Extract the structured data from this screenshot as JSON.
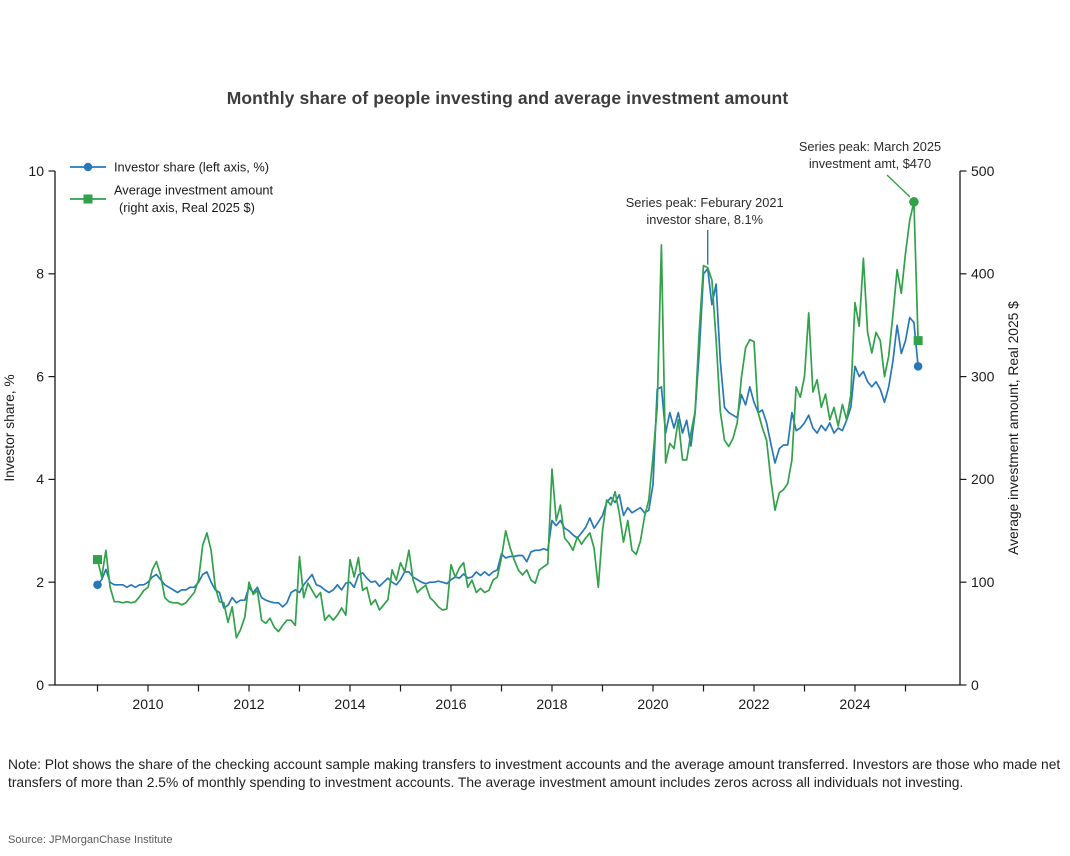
{
  "title": "Monthly share of people investing and average investment amount",
  "note": "Note: Plot shows the share of the checking account sample making transfers to investment accounts and the average amount transferred. Investors are those who made net transfers of more than 2.5% of monthly spending to investment accounts. The average investment amount includes zeros across all individuals not investing.",
  "source": "Source: JPMorganChase Institute",
  "chart_data": {
    "type": "line",
    "x_start": "2009-01",
    "x_end": "2025-04",
    "x_unit": "month",
    "x_tick_years": [
      2009,
      2010,
      2011,
      2012,
      2013,
      2014,
      2015,
      2016,
      2017,
      2018,
      2019,
      2020,
      2021,
      2022,
      2023,
      2024,
      2025
    ],
    "x_label_years": [
      2010,
      2012,
      2014,
      2016,
      2018,
      2020,
      2022,
      2024
    ],
    "left_axis": {
      "label": "Investor share, %",
      "range": [
        0,
        10
      ],
      "ticks": [
        0,
        2,
        4,
        6,
        8,
        10
      ]
    },
    "right_axis": {
      "label": "Average investment amount, Real 2025 $",
      "range": [
        0,
        500
      ],
      "ticks": [
        0,
        100,
        200,
        300,
        400,
        500
      ]
    },
    "legend": {
      "position": "top-left",
      "entries": [
        {
          "label": "Investor share (left axis, %)",
          "color": "#2878B9",
          "marker": "circle"
        },
        {
          "label_line1": "Average investment amount",
          "label_line2": "(right axis, Real 2025 $)",
          "color": "#31A14A",
          "marker": "square"
        }
      ]
    },
    "series": [
      {
        "name": "Investor share",
        "axis": "left",
        "unit": "%",
        "color": "#2878B9",
        "marker": "circle",
        "values": [
          1.95,
          2.05,
          2.25,
          2.0,
          1.95,
          1.95,
          1.95,
          1.9,
          1.95,
          1.9,
          1.95,
          1.95,
          2.0,
          2.1,
          2.15,
          2.05,
          1.95,
          1.9,
          1.85,
          1.8,
          1.85,
          1.85,
          1.9,
          1.9,
          2.0,
          2.15,
          2.2,
          2.0,
          1.85,
          1.8,
          1.5,
          1.55,
          1.7,
          1.6,
          1.65,
          1.65,
          1.9,
          1.8,
          1.9,
          1.7,
          1.65,
          1.62,
          1.6,
          1.6,
          1.52,
          1.6,
          1.8,
          1.85,
          1.8,
          1.95,
          2.05,
          2.15,
          1.95,
          1.92,
          1.85,
          1.8,
          1.85,
          1.95,
          1.85,
          1.98,
          2.0,
          1.9,
          2.14,
          2.18,
          2.08,
          2.0,
          2.02,
          1.92,
          2.0,
          2.08,
          2.0,
          1.95,
          2.05,
          2.2,
          2.2,
          2.1,
          2.05,
          2.0,
          1.97,
          2.0,
          2.0,
          2.02,
          2.0,
          1.97,
          2.05,
          2.1,
          2.08,
          2.16,
          2.08,
          2.1,
          2.2,
          2.13,
          2.2,
          2.13,
          2.2,
          2.24,
          2.55,
          2.47,
          2.5,
          2.5,
          2.52,
          2.52,
          2.4,
          2.59,
          2.62,
          2.62,
          2.65,
          2.62,
          3.2,
          3.1,
          3.2,
          3.05,
          3.0,
          2.92,
          2.86,
          2.96,
          3.07,
          3.25,
          3.05,
          3.17,
          3.3,
          3.55,
          3.65,
          3.55,
          3.7,
          3.3,
          3.45,
          3.35,
          3.4,
          3.45,
          3.35,
          3.4,
          3.9,
          5.75,
          5.8,
          4.9,
          5.3,
          5.0,
          5.3,
          4.9,
          5.15,
          4.65,
          5.3,
          6.5,
          8.0,
          8.1,
          7.4,
          7.8,
          6.3,
          5.4,
          5.3,
          5.25,
          5.2,
          5.65,
          5.45,
          5.8,
          5.5,
          5.3,
          5.35,
          5.1,
          4.7,
          4.32,
          4.6,
          4.67,
          4.67,
          5.3,
          4.95,
          5.0,
          5.1,
          5.25,
          5.0,
          4.9,
          5.05,
          4.95,
          5.1,
          4.9,
          5.0,
          4.95,
          5.15,
          5.4,
          6.2,
          6.0,
          6.1,
          5.9,
          5.8,
          5.9,
          5.75,
          5.5,
          5.8,
          6.3,
          7.0,
          6.45,
          6.7,
          7.15,
          7.05,
          6.2
        ]
      },
      {
        "name": "Average investment amount",
        "axis": "right",
        "unit": "Real 2025 $",
        "color": "#31A14A",
        "marker": "square",
        "values": [
          122,
          105,
          131,
          95,
          81,
          81,
          80,
          81,
          80,
          81,
          86,
          92,
          95,
          112,
          120,
          107,
          85,
          81,
          80,
          80,
          78,
          80,
          85,
          90,
          102,
          136,
          148,
          131,
          95,
          81,
          80,
          61,
          76,
          46,
          54,
          66,
          100,
          88,
          92,
          63,
          60,
          65,
          56,
          52,
          58,
          63,
          63,
          58,
          125,
          85,
          99,
          92,
          85,
          90,
          63,
          68,
          63,
          68,
          75,
          68,
          122,
          105,
          124,
          92,
          95,
          78,
          83,
          73,
          78,
          83,
          112,
          102,
          119,
          110,
          131,
          102,
          90,
          94,
          97,
          85,
          81,
          76,
          73,
          74,
          117,
          105,
          114,
          119,
          95,
          102,
          90,
          94,
          90,
          92,
          102,
          105,
          124,
          150,
          134,
          122,
          112,
          107,
          112,
          102,
          99,
          112,
          115,
          118,
          210,
          160,
          175,
          143,
          138,
          131,
          144,
          137,
          143,
          148,
          133,
          95,
          150,
          180,
          175,
          188,
          167,
          139,
          160,
          131,
          127,
          140,
          164,
          180,
          222,
          270,
          428,
          216,
          235,
          230,
          258,
          219,
          219,
          245,
          266,
          345,
          408,
          406,
          394,
          336,
          266,
          238,
          232,
          240,
          255,
          299,
          328,
          336,
          334,
          265,
          250,
          238,
          200,
          170,
          187,
          190,
          196,
          219,
          290,
          280,
          300,
          362,
          285,
          297,
          270,
          283,
          258,
          270,
          252,
          273,
          258,
          282,
          372,
          349,
          415,
          343,
          323,
          343,
          335,
          300,
          320,
          360,
          404,
          381,
          420,
          452,
          470,
          335
        ]
      }
    ],
    "annotations": [
      {
        "text_lines": [
          "Series peak: Feburary 2021",
          "investor share, 8.1%"
        ],
        "series": "Investor share",
        "target": "2021-02",
        "target_index": 145,
        "value": 8.1
      },
      {
        "text_lines": [
          "Series peak: March 2025",
          "investment amt, $470"
        ],
        "series": "Average investment amount",
        "target": "2025-03",
        "target_index": 194,
        "value": 470
      }
    ]
  }
}
